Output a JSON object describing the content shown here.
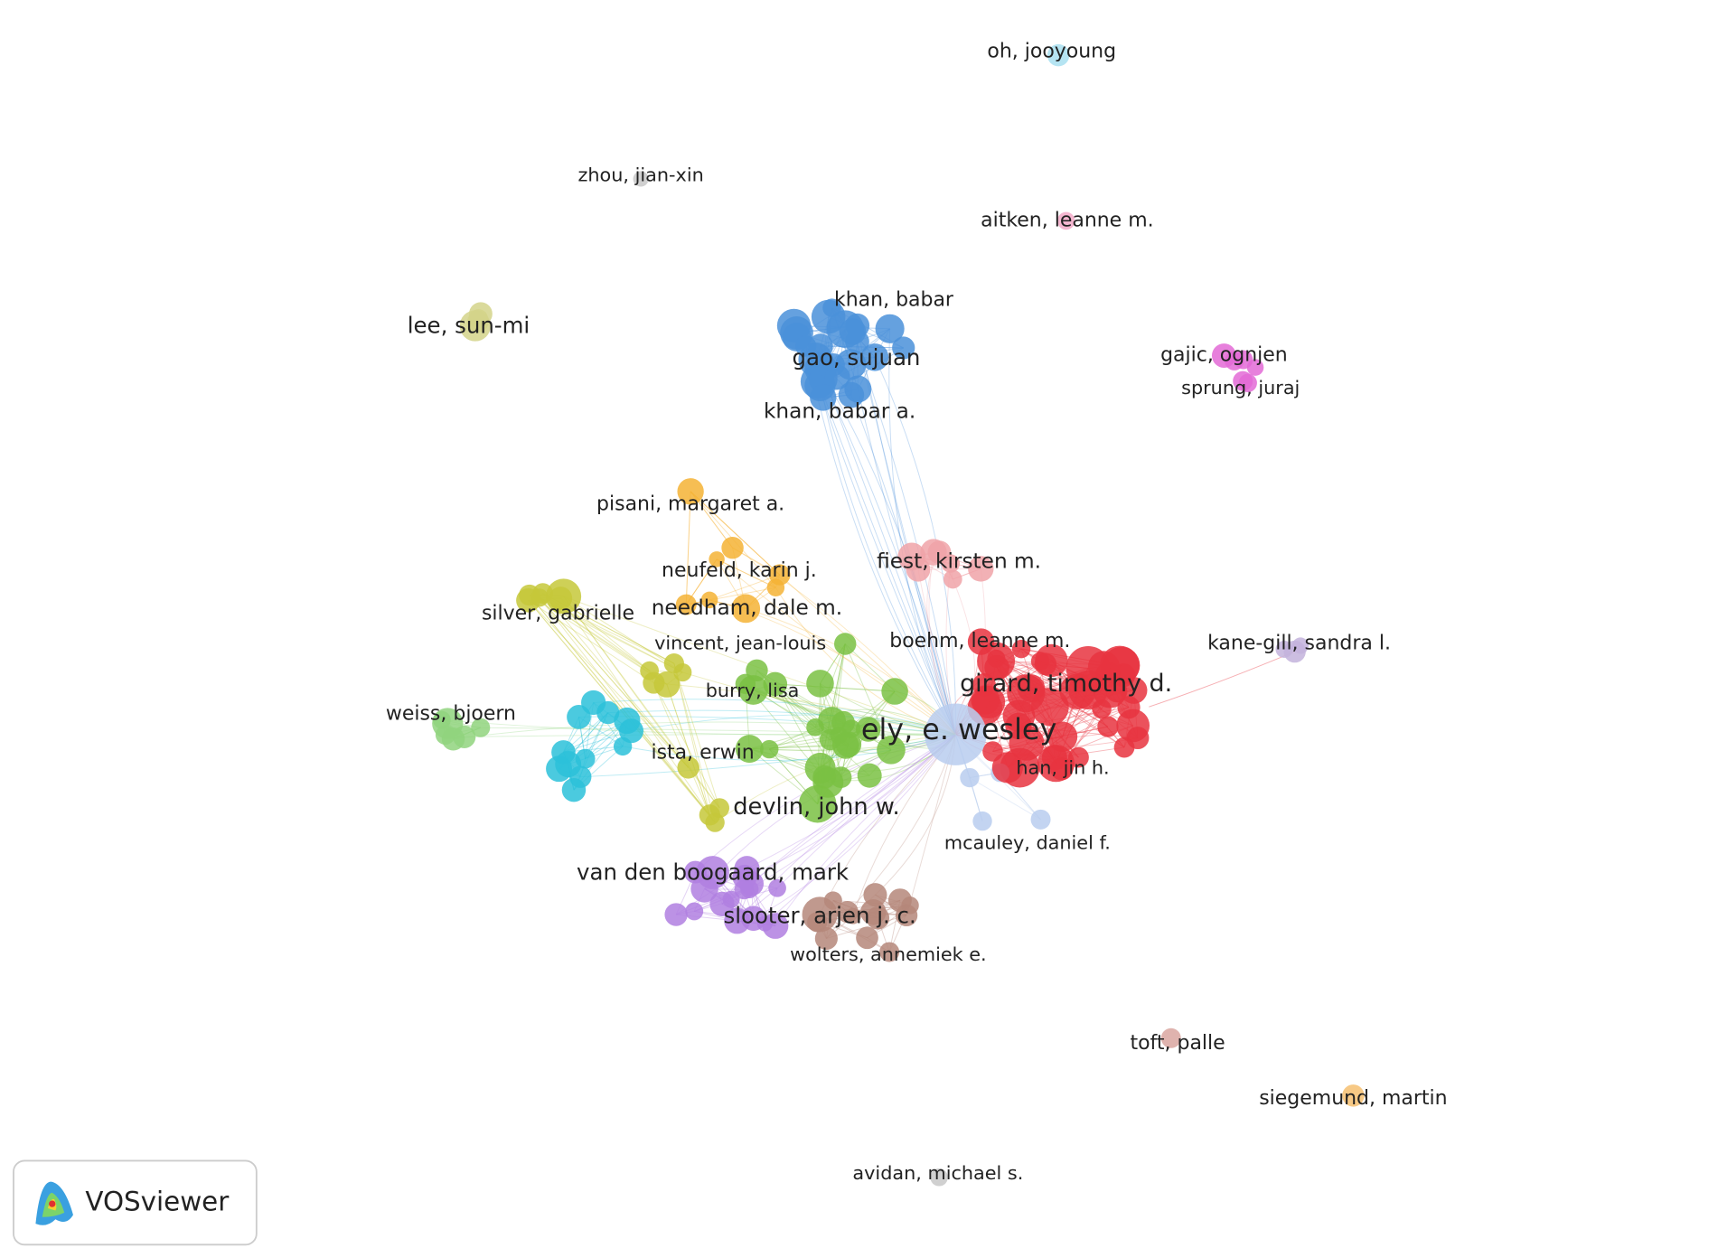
{
  "nodes": [
    {
      "label": "oh, jooyoung"
    },
    {
      "label": "zhou, jian-xin"
    },
    {
      "label": "aitken, leanne m."
    },
    {
      "label": "lee, sun-mi"
    },
    {
      "label": "khan, babar"
    },
    {
      "label": "gao, sujuan"
    },
    {
      "label": "khan, babar a."
    },
    {
      "label": "gajic, ognjen"
    },
    {
      "label": "sprung, juraj"
    },
    {
      "label": "pisani, margaret a."
    },
    {
      "label": "neufeld, karin j."
    },
    {
      "label": "needham, dale m."
    },
    {
      "label": "fiest, kirsten m."
    },
    {
      "label": "silver, gabrielle"
    },
    {
      "label": "vincent, jean-louis"
    },
    {
      "label": "burry, lisa"
    },
    {
      "label": "devlin, john w."
    },
    {
      "label": "boehm, leanne m."
    },
    {
      "label": "girard, timothy d."
    },
    {
      "label": "han, jin h."
    },
    {
      "label": "ely, e. wesley"
    },
    {
      "label": "mcauley, daniel f."
    },
    {
      "label": "kane-gill, sandra l."
    },
    {
      "label": "weiss, bjoern"
    },
    {
      "label": "ista, erwin"
    },
    {
      "label": "van den boogaard, mark"
    },
    {
      "label": "slooter, arjen j. c."
    },
    {
      "label": "wolters, annemiek e."
    },
    {
      "label": "toft, palle"
    },
    {
      "label": "siegemund, martin"
    },
    {
      "label": "avidan, michael s."
    }
  ],
  "logo": "VOSviewer"
}
